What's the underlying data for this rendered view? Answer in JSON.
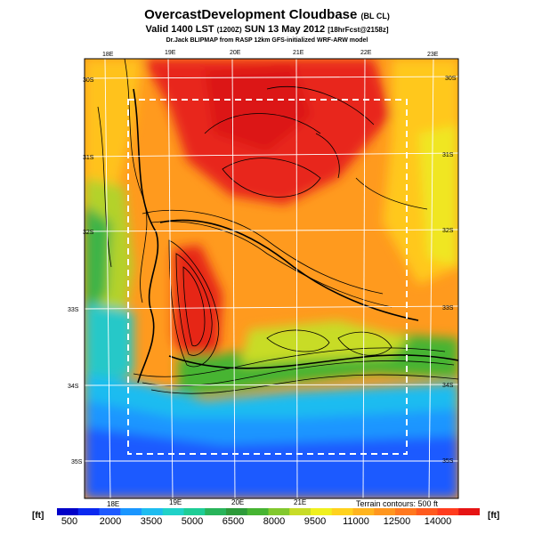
{
  "header": {
    "title_main": "OvercastDevelopment Cloudbase",
    "title_sub": "(BL CL)",
    "valid_line": "Valid 1400 LST",
    "valid_z": "(1200Z)",
    "valid_date": "SUN 13 May 2012",
    "valid_fcst": "[18hrFcst@2158z]",
    "credit": "Dr.Jack BLIPMAP from RASP 12km GFS-initialized WRF-ARW model"
  },
  "map": {
    "top_lon_labels": [
      "18E",
      "19E",
      "20E",
      "21E",
      "22E",
      "23E"
    ],
    "bottom_lon_labels": [
      "18E",
      "19E",
      "20E",
      "21E"
    ],
    "left_lat_labels": [
      "30S",
      "31S",
      "32S",
      "33S",
      "34S",
      "35S"
    ],
    "right_lat_labels": [
      "30S",
      "31S",
      "32S",
      "33S",
      "34S",
      "35S"
    ],
    "terrain_note": "Terrain contours: 500 ft"
  },
  "colorbar": {
    "units_left": "[ft]",
    "units_right": "[ft]",
    "ticks": [
      "500",
      "2000",
      "3500",
      "5000",
      "6500",
      "8000",
      "9500",
      "11000",
      "12500",
      "14000"
    ],
    "colors": [
      "#0000c8",
      "#0a28f0",
      "#1e5aff",
      "#1a96ff",
      "#1ebcf0",
      "#20d2c8",
      "#1ecd96",
      "#28b45a",
      "#2d9a3a",
      "#46b432",
      "#82c82d",
      "#c8dc28",
      "#f0f01e",
      "#ffd21e",
      "#ffb41e",
      "#ff961e",
      "#ff781e",
      "#ff5a1e",
      "#ff3c1e",
      "#e61414"
    ]
  }
}
